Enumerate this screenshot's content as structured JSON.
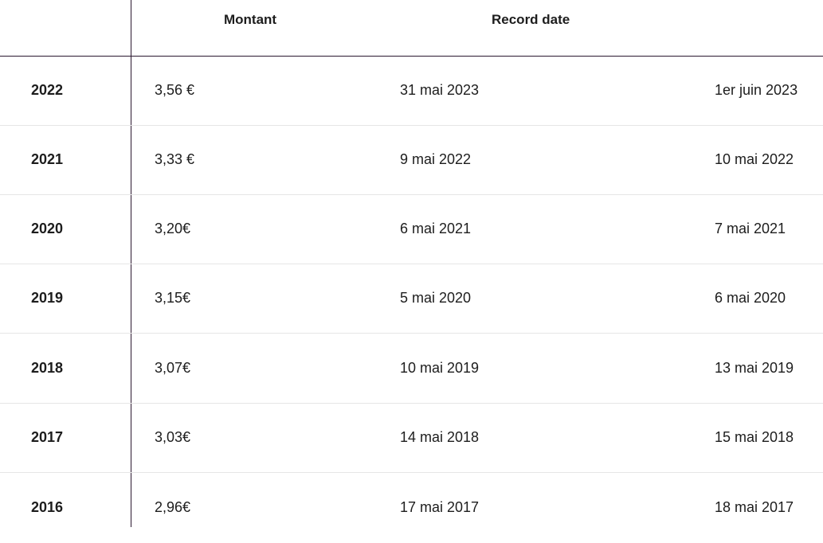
{
  "table": {
    "headers": {
      "year": "",
      "amount": "Montant",
      "record_date": "Record date",
      "payment_date": ""
    },
    "rows": [
      {
        "year": "2022",
        "amount": "3,56 €",
        "record_date": "31 mai 2023",
        "payment_date": "1er juin 2023"
      },
      {
        "year": "2021",
        "amount": "3,33 €",
        "record_date": "9 mai 2022",
        "payment_date": "10 mai 2022"
      },
      {
        "year": "2020",
        "amount": "3,20€",
        "record_date": "6 mai 2021",
        "payment_date": "7 mai 2021"
      },
      {
        "year": "2019",
        "amount": "3,15€",
        "record_date": "5 mai 2020",
        "payment_date": "6 mai 2020"
      },
      {
        "year": "2018",
        "amount": "3,07€",
        "record_date": "10 mai 2019",
        "payment_date": "13 mai 2019"
      },
      {
        "year": "2017",
        "amount": "3,03€",
        "record_date": "14 mai 2018",
        "payment_date": "15 mai 2018"
      },
      {
        "year": "2016",
        "amount": "2,96€",
        "record_date": "17 mai 2017",
        "payment_date": "18 mai 2017"
      }
    ]
  },
  "colors": {
    "text": "#1d1d1d",
    "header_rule": "#2b1830",
    "row_separator": "#e6e6e6"
  }
}
